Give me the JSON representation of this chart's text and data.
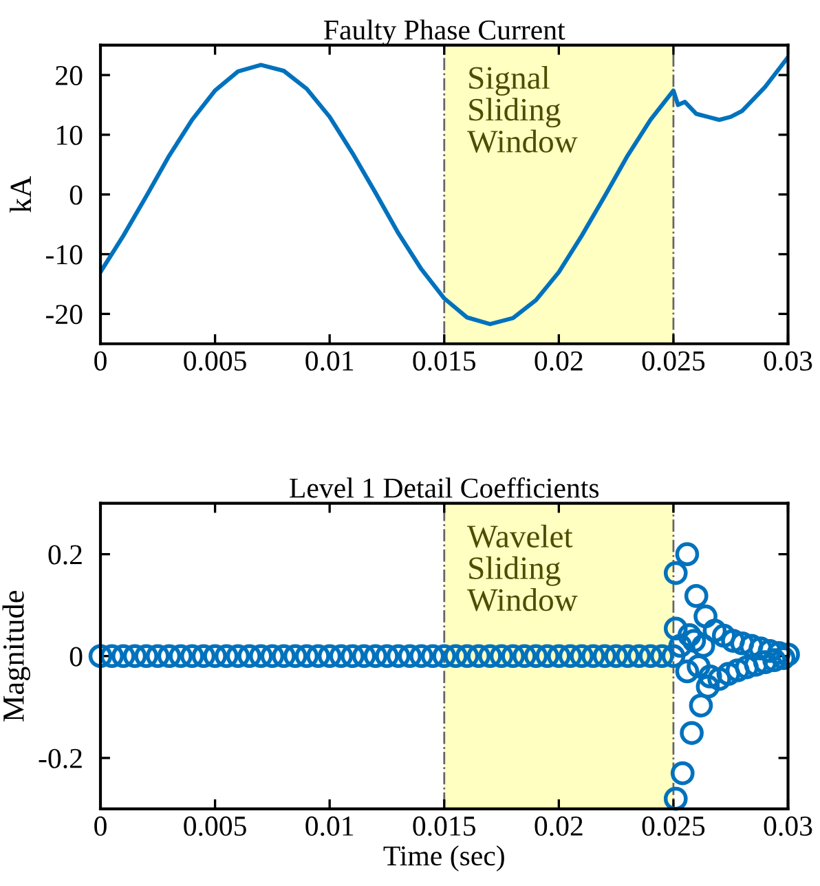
{
  "chart_data": [
    {
      "type": "line",
      "title": "Faulty Phase Current",
      "ylabel": "kA",
      "series": [
        {
          "color": "#0072bd",
          "x": [
            0,
            0.001,
            0.002,
            0.003,
            0.004,
            0.005,
            0.006,
            0.007,
            0.008,
            0.009,
            0.01,
            0.011,
            0.012,
            0.013,
            0.014,
            0.015,
            0.016,
            0.017,
            0.018,
            0.019,
            0.02,
            0.021,
            0.022,
            0.023,
            0.024,
            0.025,
            0.0252,
            0.0255,
            0.026,
            0.0265,
            0.027,
            0.0275,
            0.028,
            0.0285,
            0.029,
            0.0295,
            0.03
          ],
          "values": [
            -13.0,
            -6.9,
            -0.3,
            6.5,
            12.5,
            17.4,
            20.6,
            21.7,
            20.7,
            17.7,
            13.0,
            6.9,
            0.3,
            -6.5,
            -12.5,
            -17.4,
            -20.6,
            -21.7,
            -20.7,
            -17.7,
            -13.0,
            -6.9,
            -0.3,
            6.5,
            12.5,
            17.4,
            15.0,
            15.5,
            13.5,
            13.0,
            12.5,
            13.0,
            14.0,
            16.0,
            18.0,
            20.5,
            23.0
          ]
        }
      ],
      "xlim": [
        0,
        0.03
      ],
      "xticks": [
        0,
        0.005,
        0.01,
        0.015,
        0.02,
        0.025,
        0.03
      ],
      "ylim": [
        -25,
        25
      ],
      "yticks": [
        -20,
        -10,
        0,
        10,
        20
      ],
      "bands": [
        {
          "axis": "x",
          "from": 0.015,
          "to": 0.025,
          "label": "Signal\nSliding\nWindow",
          "color": "#ffff99"
        }
      ],
      "line_style": "solid",
      "grid": false
    },
    {
      "type": "scatter",
      "title": "Level 1 Detail Coefficients",
      "xlabel": "Time (sec)",
      "ylabel": "Magnitude",
      "series": [
        {
          "color": "#0072bd",
          "x": [
            0,
            0.0005,
            0.001,
            0.0015,
            0.002,
            0.0025,
            0.003,
            0.0035,
            0.004,
            0.0045,
            0.005,
            0.0055,
            0.006,
            0.0065,
            0.007,
            0.0075,
            0.008,
            0.0085,
            0.009,
            0.0095,
            0.01,
            0.0105,
            0.011,
            0.0115,
            0.012,
            0.0125,
            0.013,
            0.0135,
            0.014,
            0.0145,
            0.015,
            0.0155,
            0.016,
            0.0165,
            0.017,
            0.0175,
            0.018,
            0.0185,
            0.019,
            0.0195,
            0.02,
            0.0205,
            0.021,
            0.0215,
            0.022,
            0.0225,
            0.023,
            0.0235,
            0.024,
            0.0245,
            0.025,
            0.0251,
            0.0251,
            0.0251,
            0.0253,
            0.0254,
            0.0256,
            0.0256,
            0.0257,
            0.0258,
            0.0259,
            0.026,
            0.0261,
            0.0262,
            0.0263,
            0.0264,
            0.0265,
            0.0266,
            0.0268,
            0.027,
            0.0272,
            0.0274,
            0.0276,
            0.0278,
            0.028,
            0.0282,
            0.0284,
            0.0286,
            0.0288,
            0.029,
            0.0292,
            0.0294,
            0.0296,
            0.0298,
            0.03
          ],
          "values": [
            0,
            0,
            0,
            0,
            0,
            0,
            0,
            0,
            0,
            0,
            0,
            0,
            0,
            0,
            0,
            0,
            0,
            0,
            0,
            0,
            0,
            0,
            0,
            0,
            0,
            0,
            0,
            0,
            0,
            0,
            0,
            0,
            0,
            0,
            0,
            0,
            0,
            0,
            0,
            0,
            0,
            0,
            0,
            0,
            0,
            0,
            0,
            0,
            0,
            0,
            0,
            0.163,
            0.054,
            -0.28,
            0.02,
            -0.23,
            0.2,
            -0.03,
            0.041,
            -0.151,
            0.03,
            0.118,
            -0.02,
            -0.097,
            0.02,
            0.078,
            -0.06,
            -0.04,
            0.05,
            -0.045,
            0.04,
            -0.035,
            0.03,
            -0.028,
            0.025,
            -0.022,
            0.02,
            -0.017,
            0.015,
            -0.012,
            0.01,
            -0.008,
            0.006,
            -0.004,
            0.003
          ]
        }
      ],
      "xlim": [
        0,
        0.03
      ],
      "xticks": [
        0,
        0.005,
        0.01,
        0.015,
        0.02,
        0.025,
        0.03
      ],
      "ylim": [
        -0.3,
        0.3
      ],
      "yticks": [
        -0.2,
        0,
        0.2
      ],
      "bands": [
        {
          "axis": "x",
          "from": 0.015,
          "to": 0.025,
          "label": "Wavelet\nSliding\nWindow",
          "color": "#ffff99"
        }
      ],
      "marker": "circle",
      "grid": false
    }
  ]
}
